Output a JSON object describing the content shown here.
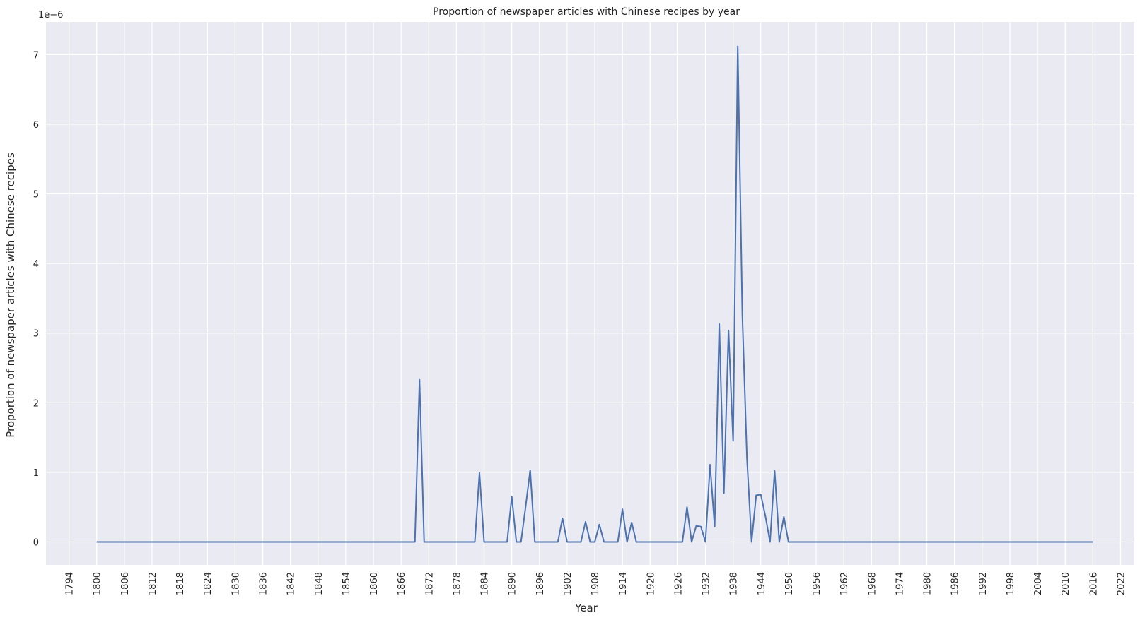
{
  "chart_data": {
    "type": "line",
    "title": "Proportion of newspaper articles with Chinese recipes by year",
    "xlabel": "Year",
    "ylabel": "Proportion of newspaper articles with Chinese recipes",
    "y_offset_text": "1e−6",
    "y_scale_factor": 1e-06,
    "xlim": [
      1789,
      2025
    ],
    "ylim": [
      -0.33,
      7.47
    ],
    "x_ticks": [
      1794,
      1800,
      1806,
      1812,
      1818,
      1824,
      1830,
      1836,
      1842,
      1848,
      1854,
      1860,
      1866,
      1872,
      1878,
      1884,
      1890,
      1896,
      1902,
      1908,
      1914,
      1920,
      1926,
      1932,
      1938,
      1944,
      1950,
      1956,
      1962,
      1968,
      1974,
      1980,
      1986,
      1992,
      1998,
      2004,
      2010,
      2016,
      2022
    ],
    "y_ticks": [
      0,
      1,
      2,
      3,
      4,
      5,
      6,
      7
    ],
    "grid": true,
    "background": "#eaeaf2",
    "line_color": "#4c72b0",
    "series": [
      {
        "name": "",
        "x": [
          1800,
          1869,
          1870,
          1871,
          1882,
          1883,
          1884,
          1889,
          1890,
          1891,
          1892,
          1893,
          1894,
          1895,
          1900,
          1901,
          1902,
          1905,
          1906,
          1907,
          1908,
          1909,
          1910,
          1913,
          1914,
          1915,
          1916,
          1917,
          1927,
          1928,
          1929,
          1930,
          1931,
          1932,
          1933,
          1934,
          1935,
          1936,
          1937,
          1938,
          1939,
          1940,
          1941,
          1942,
          1943,
          1944,
          1945,
          1946,
          1947,
          1948,
          1949,
          1950,
          2016
        ],
        "y": [
          0,
          0,
          2.33,
          0,
          0,
          0.99,
          0,
          0,
          0.65,
          0,
          0,
          0.5,
          1.03,
          0,
          0,
          0.34,
          0,
          0,
          0.29,
          0,
          0,
          0.25,
          0,
          0,
          0.47,
          0,
          0.28,
          0,
          0,
          0.5,
          0,
          0.23,
          0.22,
          0,
          1.11,
          0.22,
          3.13,
          0.7,
          3.04,
          1.45,
          7.12,
          3.25,
          1.2,
          0,
          0.67,
          0.68,
          0.37,
          0,
          1.02,
          0,
          0.36,
          0,
          0
        ]
      }
    ]
  }
}
